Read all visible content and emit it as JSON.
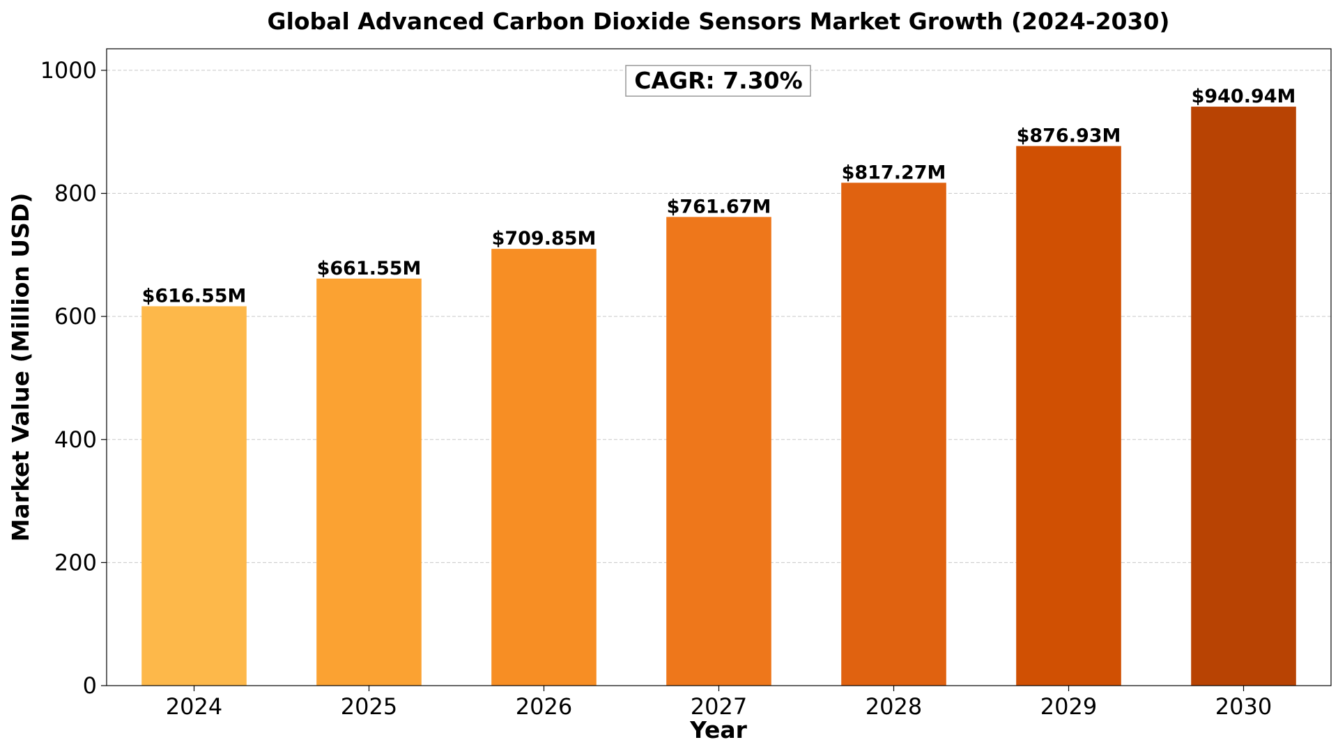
{
  "chart_data": {
    "type": "bar",
    "title": "Global Advanced Carbon Dioxide Sensors Market Growth (2024-2030)",
    "xlabel": "Year",
    "ylabel": "Market Value (Million USD)",
    "categories": [
      "2024",
      "2025",
      "2026",
      "2027",
      "2028",
      "2029",
      "2030"
    ],
    "values": [
      616.55,
      661.55,
      709.85,
      761.67,
      817.27,
      876.93,
      940.94
    ],
    "data_labels": [
      "$616.55M",
      "$661.55M",
      "$709.85M",
      "$761.67M",
      "$817.27M",
      "$876.93M",
      "$940.94M"
    ],
    "bar_colors": [
      "#FDB84A",
      "#FBA232",
      "#F78E24",
      "#EE771B",
      "#E06210",
      "#D05003",
      "#B84303"
    ],
    "ylim": [
      0,
      1035
    ],
    "yticks": [
      0,
      200,
      400,
      600,
      800,
      1000
    ],
    "grid": "y-dashed",
    "annotation": "CAGR: 7.30%"
  }
}
